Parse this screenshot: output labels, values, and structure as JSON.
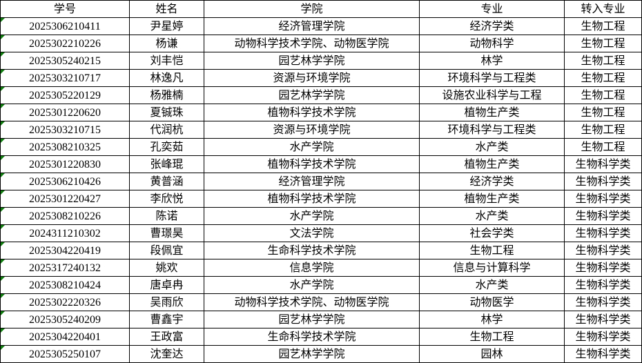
{
  "table": {
    "columns": [
      {
        "key": "student_id",
        "label": "学号"
      },
      {
        "key": "name",
        "label": "姓名"
      },
      {
        "key": "college",
        "label": "学院"
      },
      {
        "key": "major",
        "label": "专业"
      },
      {
        "key": "target_major",
        "label": "转入专业"
      }
    ],
    "rows": [
      [
        "2025306210411",
        "尹星婷",
        "经济管理学院",
        "经济学类",
        "生物工程"
      ],
      [
        "2025302210226",
        "杨谦",
        "动物科学技术学院、动物医学院",
        "动物科学",
        "生物工程"
      ],
      [
        "2025305240215",
        "刘丰恺",
        "园艺林学学院",
        "林学",
        "生物工程"
      ],
      [
        "2025303210717",
        "林逸凡",
        "资源与环境学院",
        "环境科学与工程类",
        "生物工程"
      ],
      [
        "2025305220129",
        "杨雅楠",
        "园艺林学学院",
        "设施农业科学与工程",
        "生物工程"
      ],
      [
        "2025301220620",
        "夏铖珠",
        "植物科学技术学院",
        "植物生产类",
        "生物工程"
      ],
      [
        "2025303210715",
        "代润杭",
        "资源与环境学院",
        "环境科学与工程类",
        "生物工程"
      ],
      [
        "2025308210325",
        "孔奕茹",
        "水产学院",
        "水产类",
        "生物工程"
      ],
      [
        "2025301220830",
        "张峰琨",
        "植物科学技术学院",
        "植物生产类",
        "生物科学类"
      ],
      [
        "2025306210426",
        "黄普涵",
        "经济管理学院",
        "经济学类",
        "生物科学类"
      ],
      [
        "2025301220427",
        "李欣悦",
        "植物科学技术学院",
        "植物生产类",
        "生物科学类"
      ],
      [
        "2025308210226",
        "陈诺",
        "水产学院",
        "水产类",
        "生物科学类"
      ],
      [
        "2024311210302",
        "曹璟昊",
        "文法学院",
        "社会学类",
        "生物科学类"
      ],
      [
        "2025304220419",
        "段佩宜",
        "生命科学技术学院",
        "生物工程",
        "生物科学类"
      ],
      [
        "2025317240132",
        "姚欢",
        "信息学院",
        "信息与计算科学",
        "生物科学类"
      ],
      [
        "2025308210424",
        "唐卓冉",
        "水产学院",
        "水产类",
        "生物科学类"
      ],
      [
        "2025302220326",
        "吴雨欣",
        "动物科学技术学院、动物医学院",
        "动物医学",
        "生物科学类"
      ],
      [
        "2025305240209",
        "曹鑫宇",
        "园艺林学学院",
        "林学",
        "生物科学类"
      ],
      [
        "2025304220401",
        "王政富",
        "生命科学技术学院",
        "生物工程",
        "生物科学类"
      ],
      [
        "2025305250107",
        "沈奎达",
        "园艺林学学院",
        "园林",
        "生物科学类"
      ]
    ],
    "colors": {
      "border": "#000000",
      "background": "#ffffff",
      "text": "#000000",
      "number_as_text_indicator": "#107c10"
    }
  }
}
